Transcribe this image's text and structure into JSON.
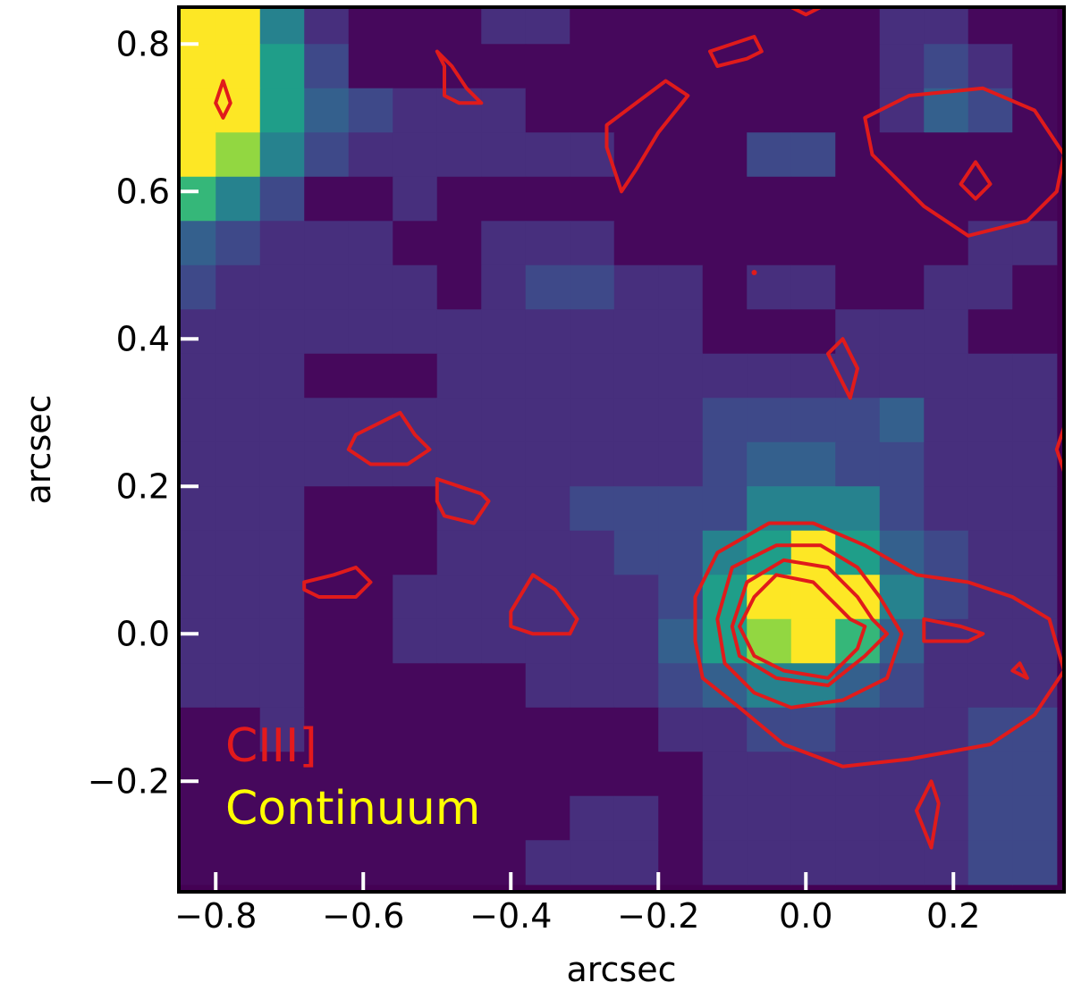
{
  "chart_data": {
    "type": "heatmap",
    "title": "",
    "xlabel": "arcsec",
    "ylabel": "arcsec",
    "xlim": [
      -0.85,
      0.35
    ],
    "ylim": [
      -0.35,
      0.85
    ],
    "xticks": [
      -0.8,
      -0.6,
      -0.4,
      -0.2,
      0.0,
      0.2
    ],
    "xtick_labels": [
      "−0.8",
      "−0.6",
      "−0.4",
      "−0.2",
      "0.0",
      "0.2"
    ],
    "yticks": [
      -0.2,
      0.0,
      0.2,
      0.4,
      0.6,
      0.8
    ],
    "ytick_labels": [
      "−0.2",
      "0.0",
      "0.2",
      "0.4",
      "0.6",
      "0.8"
    ],
    "grid": false,
    "colormap": "viridis",
    "pixel_scale_arcsec": 0.06,
    "heatmap_x_start": -0.86,
    "heatmap_y_start": 0.86,
    "heatmap_values": [
      [
        9,
        9,
        5,
        2,
        1,
        1,
        1,
        2,
        2,
        1,
        1,
        1,
        1,
        1,
        1,
        1,
        2,
        2,
        1,
        1
      ],
      [
        9,
        9,
        6,
        3,
        1,
        1,
        1,
        1,
        1,
        1,
        1,
        1,
        1,
        1,
        1,
        1,
        2,
        3,
        2,
        1
      ],
      [
        9,
        9,
        6,
        4,
        3,
        2,
        2,
        2,
        1,
        1,
        1,
        1,
        1,
        1,
        1,
        1,
        2,
        4,
        3,
        1
      ],
      [
        9,
        8,
        5,
        3,
        2,
        2,
        2,
        2,
        2,
        2,
        1,
        1,
        1,
        3,
        3,
        1,
        1,
        1,
        1,
        1
      ],
      [
        7,
        5,
        3,
        1,
        1,
        2,
        1,
        1,
        1,
        1,
        1,
        1,
        1,
        1,
        1,
        1,
        1,
        1,
        1,
        1
      ],
      [
        4,
        3,
        2,
        2,
        2,
        1,
        1,
        2,
        2,
        2,
        1,
        1,
        1,
        1,
        1,
        1,
        1,
        1,
        2,
        2
      ],
      [
        3,
        2,
        2,
        2,
        2,
        2,
        1,
        2,
        3,
        3,
        2,
        2,
        1,
        2,
        2,
        1,
        1,
        2,
        2,
        1
      ],
      [
        2,
        2,
        2,
        2,
        2,
        2,
        2,
        2,
        2,
        2,
        2,
        2,
        1,
        1,
        1,
        2,
        2,
        2,
        1,
        1
      ],
      [
        2,
        2,
        2,
        1,
        1,
        1,
        2,
        2,
        2,
        2,
        2,
        2,
        2,
        2,
        2,
        2,
        2,
        2,
        2,
        2
      ],
      [
        2,
        2,
        2,
        2,
        2,
        2,
        2,
        2,
        2,
        2,
        2,
        2,
        3,
        3,
        3,
        3,
        4,
        2,
        2,
        2
      ],
      [
        2,
        2,
        2,
        2,
        2,
        2,
        2,
        2,
        2,
        2,
        2,
        2,
        3,
        4,
        4,
        3,
        3,
        2,
        2,
        2
      ],
      [
        2,
        2,
        2,
        1,
        1,
        1,
        2,
        2,
        2,
        3,
        3,
        3,
        3,
        5,
        5,
        5,
        3,
        2,
        2,
        2
      ],
      [
        2,
        2,
        2,
        1,
        1,
        1,
        2,
        2,
        2,
        2,
        3,
        3,
        5,
        6,
        9,
        6,
        4,
        3,
        2,
        2
      ],
      [
        2,
        2,
        2,
        1,
        1,
        2,
        2,
        2,
        2,
        2,
        2,
        3,
        6,
        9,
        9,
        9,
        5,
        3,
        2,
        2
      ],
      [
        2,
        2,
        2,
        1,
        1,
        2,
        2,
        2,
        2,
        2,
        2,
        4,
        6,
        8,
        9,
        7,
        4,
        2,
        2,
        2
      ],
      [
        2,
        2,
        2,
        1,
        1,
        1,
        1,
        1,
        2,
        2,
        2,
        3,
        4,
        5,
        5,
        4,
        3,
        2,
        2,
        2
      ],
      [
        1,
        1,
        2,
        1,
        1,
        1,
        1,
        1,
        1,
        1,
        1,
        2,
        2,
        3,
        3,
        2,
        2,
        2,
        3,
        3
      ],
      [
        1,
        1,
        1,
        1,
        1,
        1,
        1,
        1,
        1,
        1,
        1,
        1,
        2,
        2,
        2,
        2,
        2,
        2,
        3,
        3
      ],
      [
        1,
        1,
        1,
        1,
        1,
        1,
        1,
        1,
        1,
        2,
        2,
        1,
        2,
        2,
        2,
        2,
        2,
        2,
        3,
        3
      ],
      [
        1,
        1,
        1,
        1,
        1,
        1,
        1,
        1,
        2,
        2,
        2,
        1,
        2,
        2,
        2,
        2,
        2,
        2,
        3,
        3
      ]
    ],
    "contour_color": "#e01b1b",
    "contours": [
      [
        [
          0.24,
          0.74
        ],
        [
          0.14,
          0.73
        ],
        [
          0.08,
          0.7
        ],
        [
          0.09,
          0.65
        ],
        [
          0.16,
          0.58
        ],
        [
          0.22,
          0.54
        ],
        [
          0.3,
          0.56
        ],
        [
          0.34,
          0.6
        ],
        [
          0.35,
          0.65
        ],
        [
          0.31,
          0.71
        ]
      ],
      [
        [
          0.23,
          0.64
        ],
        [
          0.25,
          0.61
        ],
        [
          0.23,
          0.59
        ],
        [
          0.21,
          0.61
        ]
      ],
      [
        [
          -0.27,
          0.69
        ],
        [
          -0.19,
          0.75
        ],
        [
          -0.16,
          0.73
        ],
        [
          -0.2,
          0.68
        ],
        [
          -0.23,
          0.63
        ],
        [
          -0.25,
          0.6
        ],
        [
          -0.27,
          0.66
        ]
      ],
      [
        [
          -0.5,
          0.79
        ],
        [
          -0.48,
          0.77
        ],
        [
          -0.46,
          0.74
        ],
        [
          -0.44,
          0.72
        ],
        [
          -0.47,
          0.72
        ],
        [
          -0.49,
          0.73
        ],
        [
          -0.49,
          0.77
        ]
      ],
      [
        [
          -0.13,
          0.79
        ],
        [
          -0.07,
          0.81
        ],
        [
          -0.06,
          0.79
        ],
        [
          -0.08,
          0.78
        ],
        [
          -0.12,
          0.77
        ]
      ],
      [
        [
          -0.79,
          0.75
        ],
        [
          -0.78,
          0.72
        ],
        [
          -0.79,
          0.7
        ],
        [
          -0.8,
          0.72
        ]
      ],
      [
        [
          0.03,
          0.38
        ],
        [
          0.05,
          0.4
        ],
        [
          0.07,
          0.36
        ],
        [
          0.06,
          0.32
        ],
        [
          0.04,
          0.36
        ]
      ],
      [
        [
          -0.61,
          0.27
        ],
        [
          -0.55,
          0.3
        ],
        [
          -0.53,
          0.27
        ],
        [
          -0.51,
          0.25
        ],
        [
          -0.54,
          0.23
        ],
        [
          -0.59,
          0.23
        ],
        [
          -0.62,
          0.25
        ]
      ],
      [
        [
          -0.5,
          0.21
        ],
        [
          -0.47,
          0.2
        ],
        [
          -0.44,
          0.19
        ],
        [
          -0.43,
          0.18
        ],
        [
          -0.45,
          0.15
        ],
        [
          -0.49,
          0.16
        ],
        [
          -0.5,
          0.18
        ]
      ],
      [
        [
          -0.68,
          0.07
        ],
        [
          -0.64,
          0.08
        ],
        [
          -0.61,
          0.09
        ],
        [
          -0.59,
          0.07
        ],
        [
          -0.61,
          0.05
        ],
        [
          -0.66,
          0.05
        ],
        [
          -0.68,
          0.06
        ]
      ],
      [
        [
          -0.4,
          0.03
        ],
        [
          -0.37,
          0.08
        ],
        [
          -0.34,
          0.06
        ],
        [
          -0.31,
          0.02
        ],
        [
          -0.32,
          0.0
        ],
        [
          -0.37,
          0.0
        ],
        [
          -0.4,
          0.01
        ]
      ],
      [
        [
          -0.07,
          0.05
        ],
        [
          -0.04,
          0.08
        ],
        [
          0.01,
          0.07
        ],
        [
          0.04,
          0.04
        ],
        [
          0.06,
          0.02
        ],
        [
          0.08,
          0.01
        ],
        [
          0.07,
          -0.02
        ],
        [
          0.03,
          -0.06
        ],
        [
          -0.03,
          -0.05
        ],
        [
          -0.07,
          -0.03
        ],
        [
          -0.09,
          0.01
        ]
      ],
      [
        [
          -0.08,
          0.07
        ],
        [
          -0.03,
          0.1
        ],
        [
          0.03,
          0.09
        ],
        [
          0.07,
          0.05
        ],
        [
          0.09,
          0.02
        ],
        [
          0.11,
          0.0
        ],
        [
          0.08,
          -0.03
        ],
        [
          0.03,
          -0.07
        ],
        [
          -0.04,
          -0.06
        ],
        [
          -0.09,
          -0.03
        ],
        [
          -0.1,
          0.01
        ]
      ],
      [
        [
          -0.1,
          0.09
        ],
        [
          -0.04,
          0.12
        ],
        [
          0.02,
          0.12
        ],
        [
          0.07,
          0.09
        ],
        [
          0.1,
          0.05
        ],
        [
          0.13,
          0.0
        ],
        [
          0.11,
          -0.06
        ],
        [
          0.05,
          -0.09
        ],
        [
          -0.02,
          -0.1
        ],
        [
          -0.07,
          -0.08
        ],
        [
          -0.11,
          -0.04
        ],
        [
          -0.12,
          0.02
        ]
      ],
      [
        [
          -0.12,
          0.11
        ],
        [
          -0.05,
          0.15
        ],
        [
          0.01,
          0.15
        ],
        [
          0.08,
          0.12
        ],
        [
          0.15,
          0.08
        ],
        [
          0.22,
          0.07
        ],
        [
          0.28,
          0.05
        ],
        [
          0.33,
          0.02
        ],
        [
          0.35,
          -0.05
        ],
        [
          0.31,
          -0.11
        ],
        [
          0.25,
          -0.15
        ],
        [
          0.14,
          -0.17
        ],
        [
          0.05,
          -0.18
        ],
        [
          -0.03,
          -0.15
        ],
        [
          -0.09,
          -0.1
        ],
        [
          -0.14,
          -0.06
        ],
        [
          -0.15,
          -0.01
        ],
        [
          -0.15,
          0.05
        ]
      ],
      [
        [
          0.17,
          -0.2
        ],
        [
          0.18,
          -0.23
        ],
        [
          0.17,
          -0.29
        ],
        [
          0.15,
          -0.24
        ]
      ],
      [
        [
          0.29,
          -0.04
        ],
        [
          0.3,
          -0.06
        ],
        [
          0.28,
          -0.05
        ]
      ],
      [
        [
          0.16,
          0.02
        ],
        [
          0.21,
          0.01
        ],
        [
          0.24,
          0.0
        ],
        [
          0.22,
          -0.01
        ],
        [
          0.16,
          -0.01
        ]
      ],
      [
        [
          -0.02,
          0.85
        ],
        [
          0.0,
          0.84
        ],
        [
          0.02,
          0.85
        ]
      ],
      [
        [
          0.35,
          0.28
        ],
        [
          0.34,
          0.25
        ],
        [
          0.35,
          0.22
        ]
      ]
    ],
    "contour_dots": [
      [
        -0.07,
        0.49
      ]
    ],
    "legend": [
      {
        "label": "CIII]",
        "color": "#e31a1c"
      },
      {
        "label": "Continuum",
        "color": "#ffff00"
      }
    ],
    "legend_placement": "bottom-left"
  }
}
